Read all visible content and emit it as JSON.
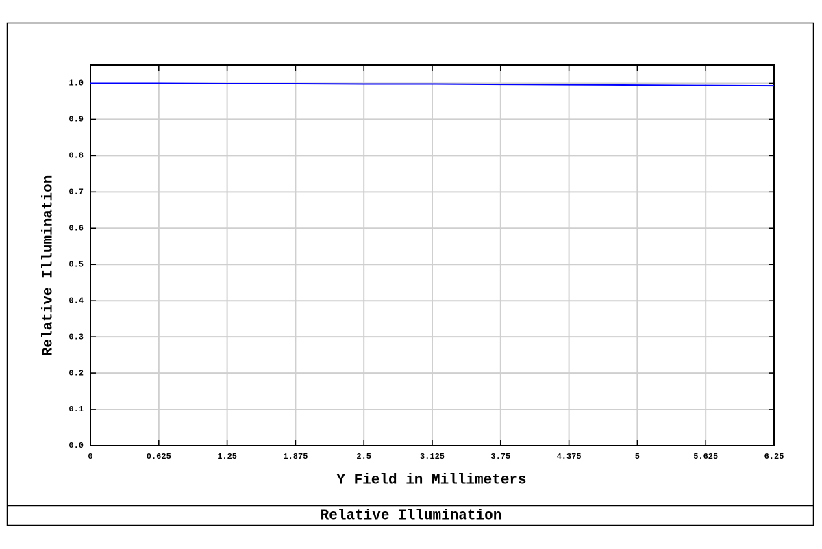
{
  "chart_data": {
    "type": "line",
    "title": "Relative Illumination",
    "xlabel": "Y Field in Millimeters",
    "ylabel": "Relative Illumination",
    "x": [
      0,
      0.625,
      1.25,
      1.875,
      2.5,
      3.125,
      3.75,
      4.375,
      5,
      5.625,
      6.25
    ],
    "values": [
      1.0,
      1.0,
      0.999,
      0.999,
      0.998,
      0.998,
      0.997,
      0.996,
      0.995,
      0.994,
      0.993
    ],
    "color": "#0000ff",
    "xlim": [
      0,
      6.25
    ],
    "ylim": [
      0,
      1.05
    ],
    "xticks": [
      0,
      0.625,
      1.25,
      1.875,
      2.5,
      3.125,
      3.75,
      4.375,
      5,
      5.625,
      6.25
    ],
    "yticks": [
      {
        "value": 0,
        "label": "0.0"
      },
      0.1,
      0.2,
      0.3,
      0.4,
      0.5,
      0.6,
      0.7,
      0.8,
      0.9,
      {
        "value": 1,
        "label": "1.0"
      }
    ],
    "grid": true
  }
}
